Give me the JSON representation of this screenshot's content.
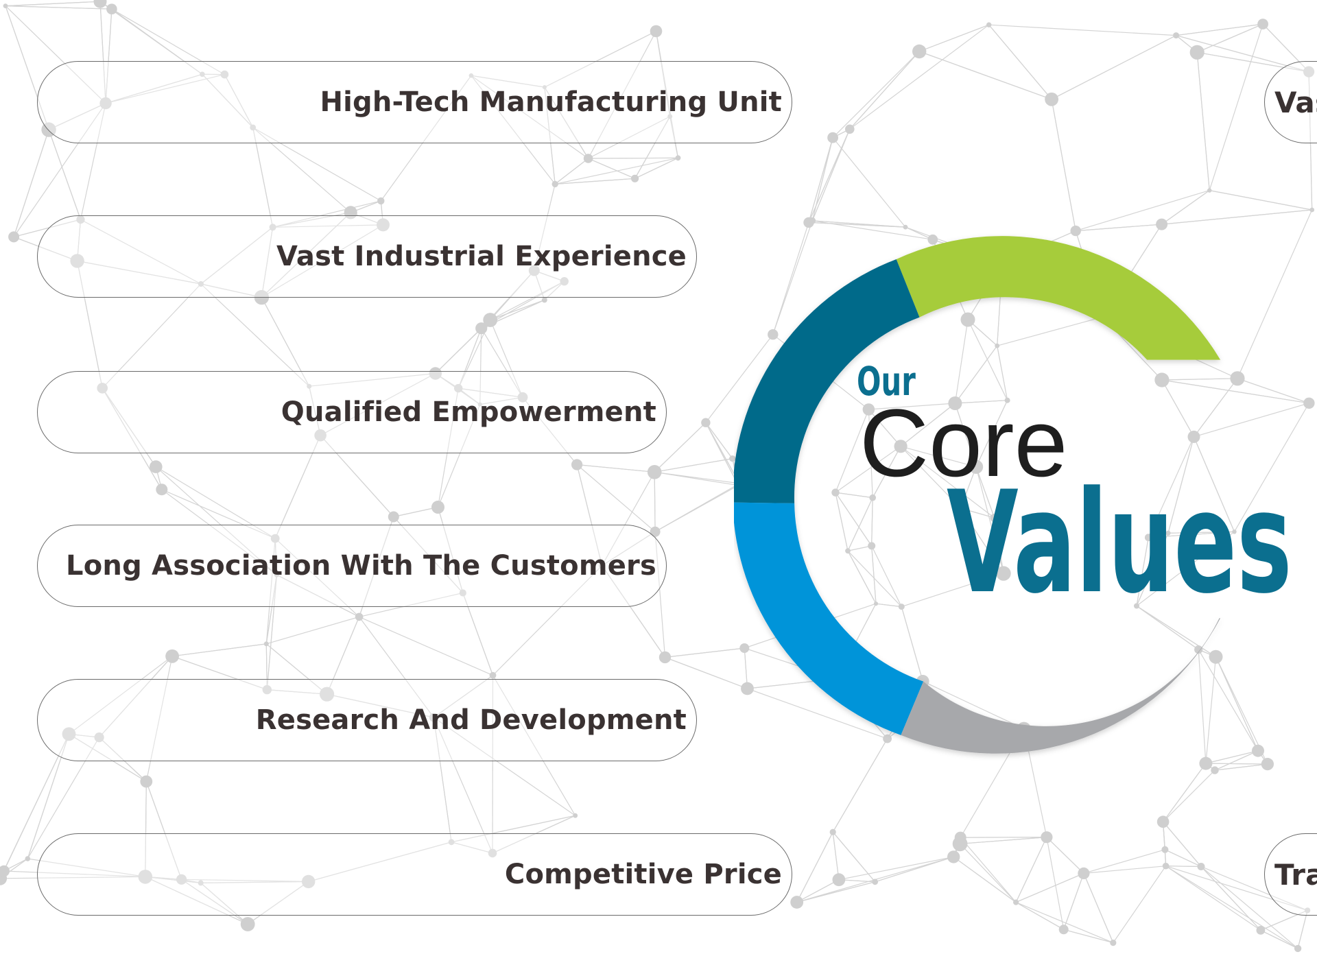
{
  "left_values": [
    {
      "label": "High-Tech Manufacturing Unit"
    },
    {
      "label": "Vast Industrial Experience"
    },
    {
      "label": "Qualified Empowerment"
    },
    {
      "label": "Long Association With The Customers"
    },
    {
      "label": "Research And Development"
    },
    {
      "label": "Competitive Price"
    }
  ],
  "right_values": [
    {
      "label": "Vas"
    },
    {
      "label": "Tra"
    }
  ],
  "center": {
    "line1": "Our",
    "line2": "Core",
    "line3": "Values"
  },
  "colors": {
    "ring_green": "#a6cc3a",
    "ring_dark_teal": "#046a8a",
    "ring_blue": "#0394d9",
    "ring_gray": "#a7a8ab",
    "title_teal": "#0b6f8f",
    "title_dark": "#1e1e1e",
    "label_text": "#3a3232",
    "network_lines": "#d4d4d4"
  }
}
